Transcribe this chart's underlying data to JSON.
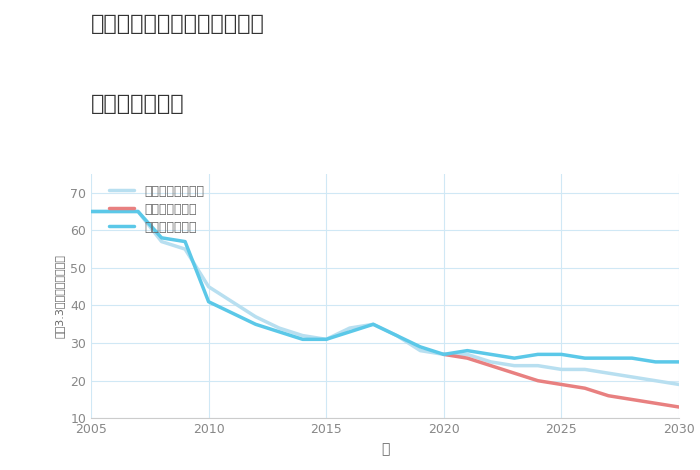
{
  "title_line1": "福岡県福岡市城南区南片江の",
  "title_line2": "土地の価格推移",
  "xlabel": "年",
  "ylabel": "坪（3.3㎡）単価（万円）",
  "ylim": [
    10,
    75
  ],
  "xlim": [
    2005,
    2030
  ],
  "yticks": [
    10,
    20,
    30,
    40,
    50,
    60,
    70
  ],
  "xticks": [
    2005,
    2010,
    2015,
    2020,
    2025,
    2030
  ],
  "background_color": "#ffffff",
  "plot_bg_color": "#ffffff",
  "good_color": "#5bc8e8",
  "bad_color": "#e88080",
  "normal_color": "#b8dff0",
  "good_label": "グッドシナリオ",
  "bad_label": "バッドシナリオ",
  "normal_label": "ノーマルシナリオ",
  "good_x": [
    2005,
    2007,
    2008,
    2009,
    2010,
    2011,
    2012,
    2013,
    2014,
    2015,
    2016,
    2017,
    2018,
    2019,
    2020,
    2021,
    2022,
    2023,
    2024,
    2025,
    2026,
    2027,
    2028,
    2029,
    2030
  ],
  "good_y": [
    65,
    65,
    58,
    57,
    41,
    38,
    35,
    33,
    31,
    31,
    33,
    35,
    32,
    29,
    27,
    28,
    27,
    26,
    27,
    27,
    26,
    26,
    26,
    25,
    25
  ],
  "bad_x": [
    2020,
    2021,
    2022,
    2023,
    2024,
    2025,
    2026,
    2027,
    2028,
    2029,
    2030
  ],
  "bad_y": [
    27,
    26,
    24,
    22,
    20,
    19,
    18,
    16,
    15,
    14,
    13
  ],
  "normal_x": [
    2005,
    2007,
    2008,
    2009,
    2010,
    2011,
    2012,
    2013,
    2014,
    2015,
    2016,
    2017,
    2018,
    2019,
    2020,
    2021,
    2022,
    2023,
    2024,
    2025,
    2026,
    2027,
    2028,
    2029,
    2030
  ],
  "normal_y": [
    65,
    65,
    57,
    55,
    45,
    41,
    37,
    34,
    32,
    31,
    34,
    35,
    32,
    28,
    27,
    27,
    25,
    24,
    24,
    23,
    23,
    22,
    21,
    20,
    19
  ]
}
